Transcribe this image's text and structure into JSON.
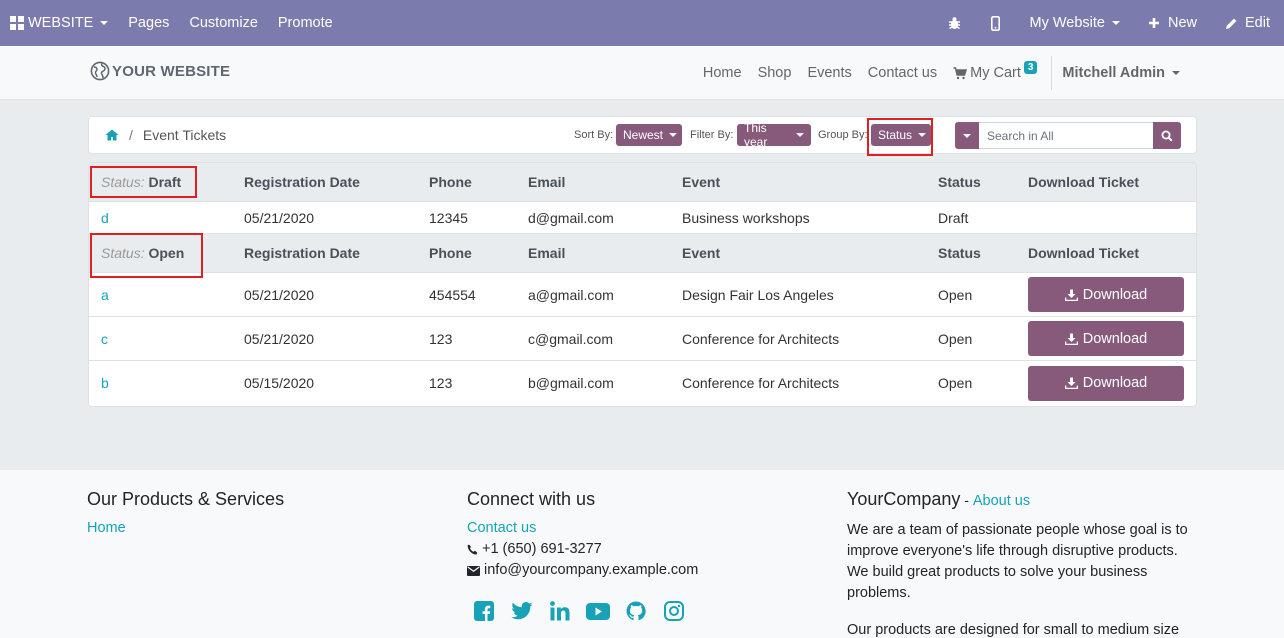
{
  "adminbar": {
    "website": "WEBSITE",
    "pages": "Pages",
    "customize": "Customize",
    "promote": "Promote",
    "my_website": "My Website",
    "new": "New",
    "edit": "Edit",
    "color": "#7c7bad"
  },
  "header": {
    "logo": "YOUR WEBSITE",
    "nav": [
      "Home",
      "Shop",
      "Events",
      "Contact us"
    ],
    "cart": "My Cart",
    "cart_count": "3",
    "user": "Mitchell Admin"
  },
  "panel": {
    "breadcrumb": "Event Tickets",
    "sort_label": "Sort By:",
    "sort_value": "Newest",
    "filter_label": "Filter By:",
    "filter_value": "This year",
    "group_label": "Group By:",
    "group_value": "Status",
    "search_placeholder": "Search in All"
  },
  "table": {
    "columns": [
      "Registration Date",
      "Phone",
      "Email",
      "Event",
      "Status",
      "Download Ticket"
    ],
    "download_label": "Download",
    "groups": [
      {
        "key": "Status:",
        "value": "Draft",
        "rows": [
          {
            "name": "d",
            "date": "05/21/2020",
            "phone": "12345",
            "email": "d@gmail.com",
            "event": "Business workshops",
            "status": "Draft"
          }
        ]
      },
      {
        "key": "Status:",
        "value": "Open",
        "rows": [
          {
            "name": "a",
            "date": "05/21/2020",
            "phone": "454554",
            "email": "a@gmail.com",
            "event": "Design Fair Los Angeles",
            "status": "Open"
          },
          {
            "name": "c",
            "date": "05/21/2020",
            "phone": "123",
            "email": "c@gmail.com",
            "event": "Conference for Architects",
            "status": "Open"
          },
          {
            "name": "b",
            "date": "05/15/2020",
            "phone": "123",
            "email": "b@gmail.com",
            "event": "Conference for Architects",
            "status": "Open"
          }
        ]
      }
    ]
  },
  "footer": {
    "products_title": "Our Products & Services",
    "products_link": "Home",
    "connect_title": "Connect with us",
    "contact_link": "Contact us",
    "phone": "+1 (650) 691-3277",
    "email": "info@yourcompany.example.com",
    "company": "YourCompany",
    "company_sep": " - ",
    "about_link": "About us",
    "about_p1": "We are a team of passionate people whose goal is to improve everyone's life through disruptive products. We build great products to solve your business problems.",
    "about_p2": "Our products are designed for small to medium size companies willing to optimize their performance.",
    "social_icons": [
      "facebook-icon",
      "twitter-icon",
      "linkedin-icon",
      "youtube-icon",
      "github-icon",
      "instagram-icon"
    ]
  },
  "colors": {
    "primary": "#875a7b",
    "link": "#17a2b8",
    "highlight": "#e02020"
  }
}
